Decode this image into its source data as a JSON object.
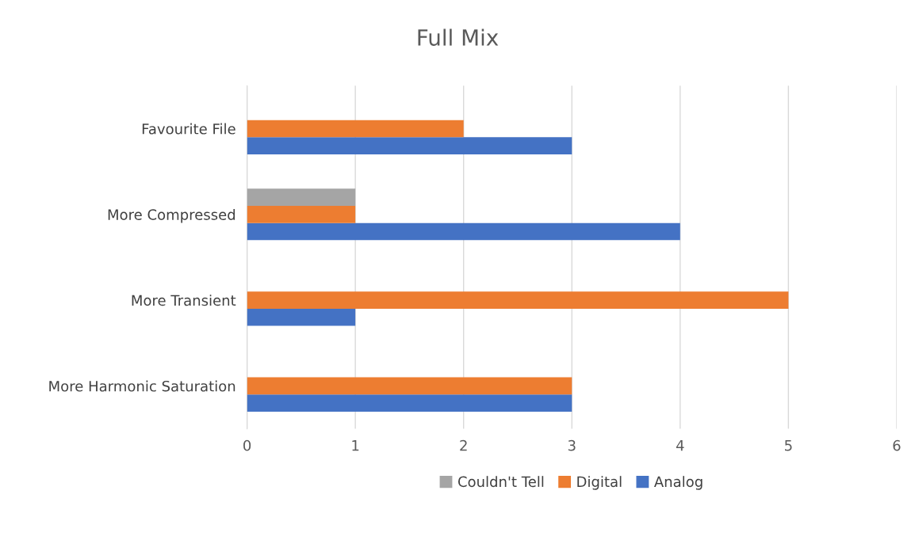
{
  "chart_data": {
    "type": "bar",
    "orientation": "horizontal",
    "title": "Full Mix",
    "categories": [
      "Favourite File",
      "More Compressed",
      "More Transient",
      "More Harmonic Saturation"
    ],
    "series": [
      {
        "name": "Analog",
        "color": "#4472c4",
        "values": [
          3,
          4,
          1,
          3
        ]
      },
      {
        "name": "Digital",
        "color": "#ed7d31",
        "values": [
          2,
          1,
          5,
          3
        ]
      },
      {
        "name": "Couldn't Tell",
        "color": "#a5a5a5",
        "values": [
          0,
          1,
          0,
          0
        ]
      }
    ],
    "xlim": [
      0,
      6
    ],
    "xticks": [
      0,
      1,
      2,
      3,
      4,
      5,
      6
    ],
    "grid": "x",
    "legend": "bottom"
  }
}
